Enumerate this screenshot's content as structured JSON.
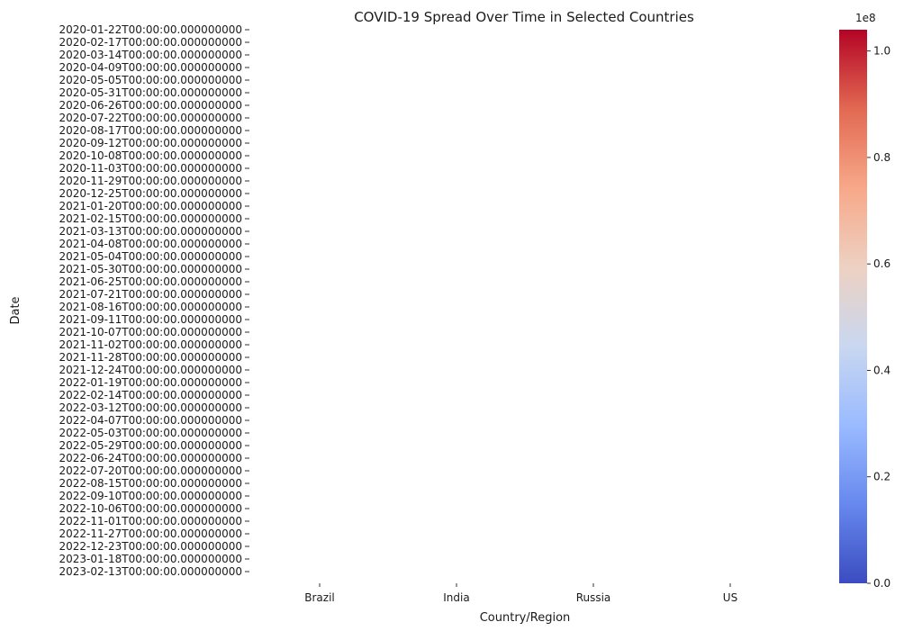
{
  "chart_data": {
    "type": "heatmap",
    "title": "COVID-19 Spread Over Time in Selected Countries",
    "xlabel": "Country/Region",
    "ylabel": "Date",
    "x_categories": [
      "Brazil",
      "India",
      "Russia",
      "US"
    ],
    "y_tick_labels": [
      "2020-01-22T00:00:00.000000000",
      "2020-02-17T00:00:00.000000000",
      "2020-03-14T00:00:00.000000000",
      "2020-04-09T00:00:00.000000000",
      "2020-05-05T00:00:00.000000000",
      "2020-05-31T00:00:00.000000000",
      "2020-06-26T00:00:00.000000000",
      "2020-07-22T00:00:00.000000000",
      "2020-08-17T00:00:00.000000000",
      "2020-09-12T00:00:00.000000000",
      "2020-10-08T00:00:00.000000000",
      "2020-11-03T00:00:00.000000000",
      "2020-11-29T00:00:00.000000000",
      "2020-12-25T00:00:00.000000000",
      "2021-01-20T00:00:00.000000000",
      "2021-02-15T00:00:00.000000000",
      "2021-03-13T00:00:00.000000000",
      "2021-04-08T00:00:00.000000000",
      "2021-05-04T00:00:00.000000000",
      "2021-05-30T00:00:00.000000000",
      "2021-06-25T00:00:00.000000000",
      "2021-07-21T00:00:00.000000000",
      "2021-08-16T00:00:00.000000000",
      "2021-09-11T00:00:00.000000000",
      "2021-10-07T00:00:00.000000000",
      "2021-11-02T00:00:00.000000000",
      "2021-11-28T00:00:00.000000000",
      "2021-12-24T00:00:00.000000000",
      "2022-01-19T00:00:00.000000000",
      "2022-02-14T00:00:00.000000000",
      "2022-03-12T00:00:00.000000000",
      "2022-04-07T00:00:00.000000000",
      "2022-05-03T00:00:00.000000000",
      "2022-05-29T00:00:00.000000000",
      "2022-06-24T00:00:00.000000000",
      "2022-07-20T00:00:00.000000000",
      "2022-08-15T00:00:00.000000000",
      "2022-09-10T00:00:00.000000000",
      "2022-10-06T00:00:00.000000000",
      "2022-11-01T00:00:00.000000000",
      "2022-11-27T00:00:00.000000000",
      "2022-12-23T00:00:00.000000000",
      "2023-01-18T00:00:00.000000000",
      "2023-02-13T00:00:00.000000000"
    ],
    "values": [],
    "colorbar": {
      "colormap": "coolwarm",
      "range": [
        0,
        104000000
      ],
      "ticks": [
        "0.0",
        "0.2",
        "0.4",
        "0.6",
        "0.8",
        "1.0"
      ],
      "offset_label": "1e8",
      "colors": [
        "#3b4cc0",
        "#6788ee",
        "#9abbff",
        "#c9d7f0",
        "#edd1c2",
        "#f7a889",
        "#e26952",
        "#b40426"
      ]
    }
  }
}
